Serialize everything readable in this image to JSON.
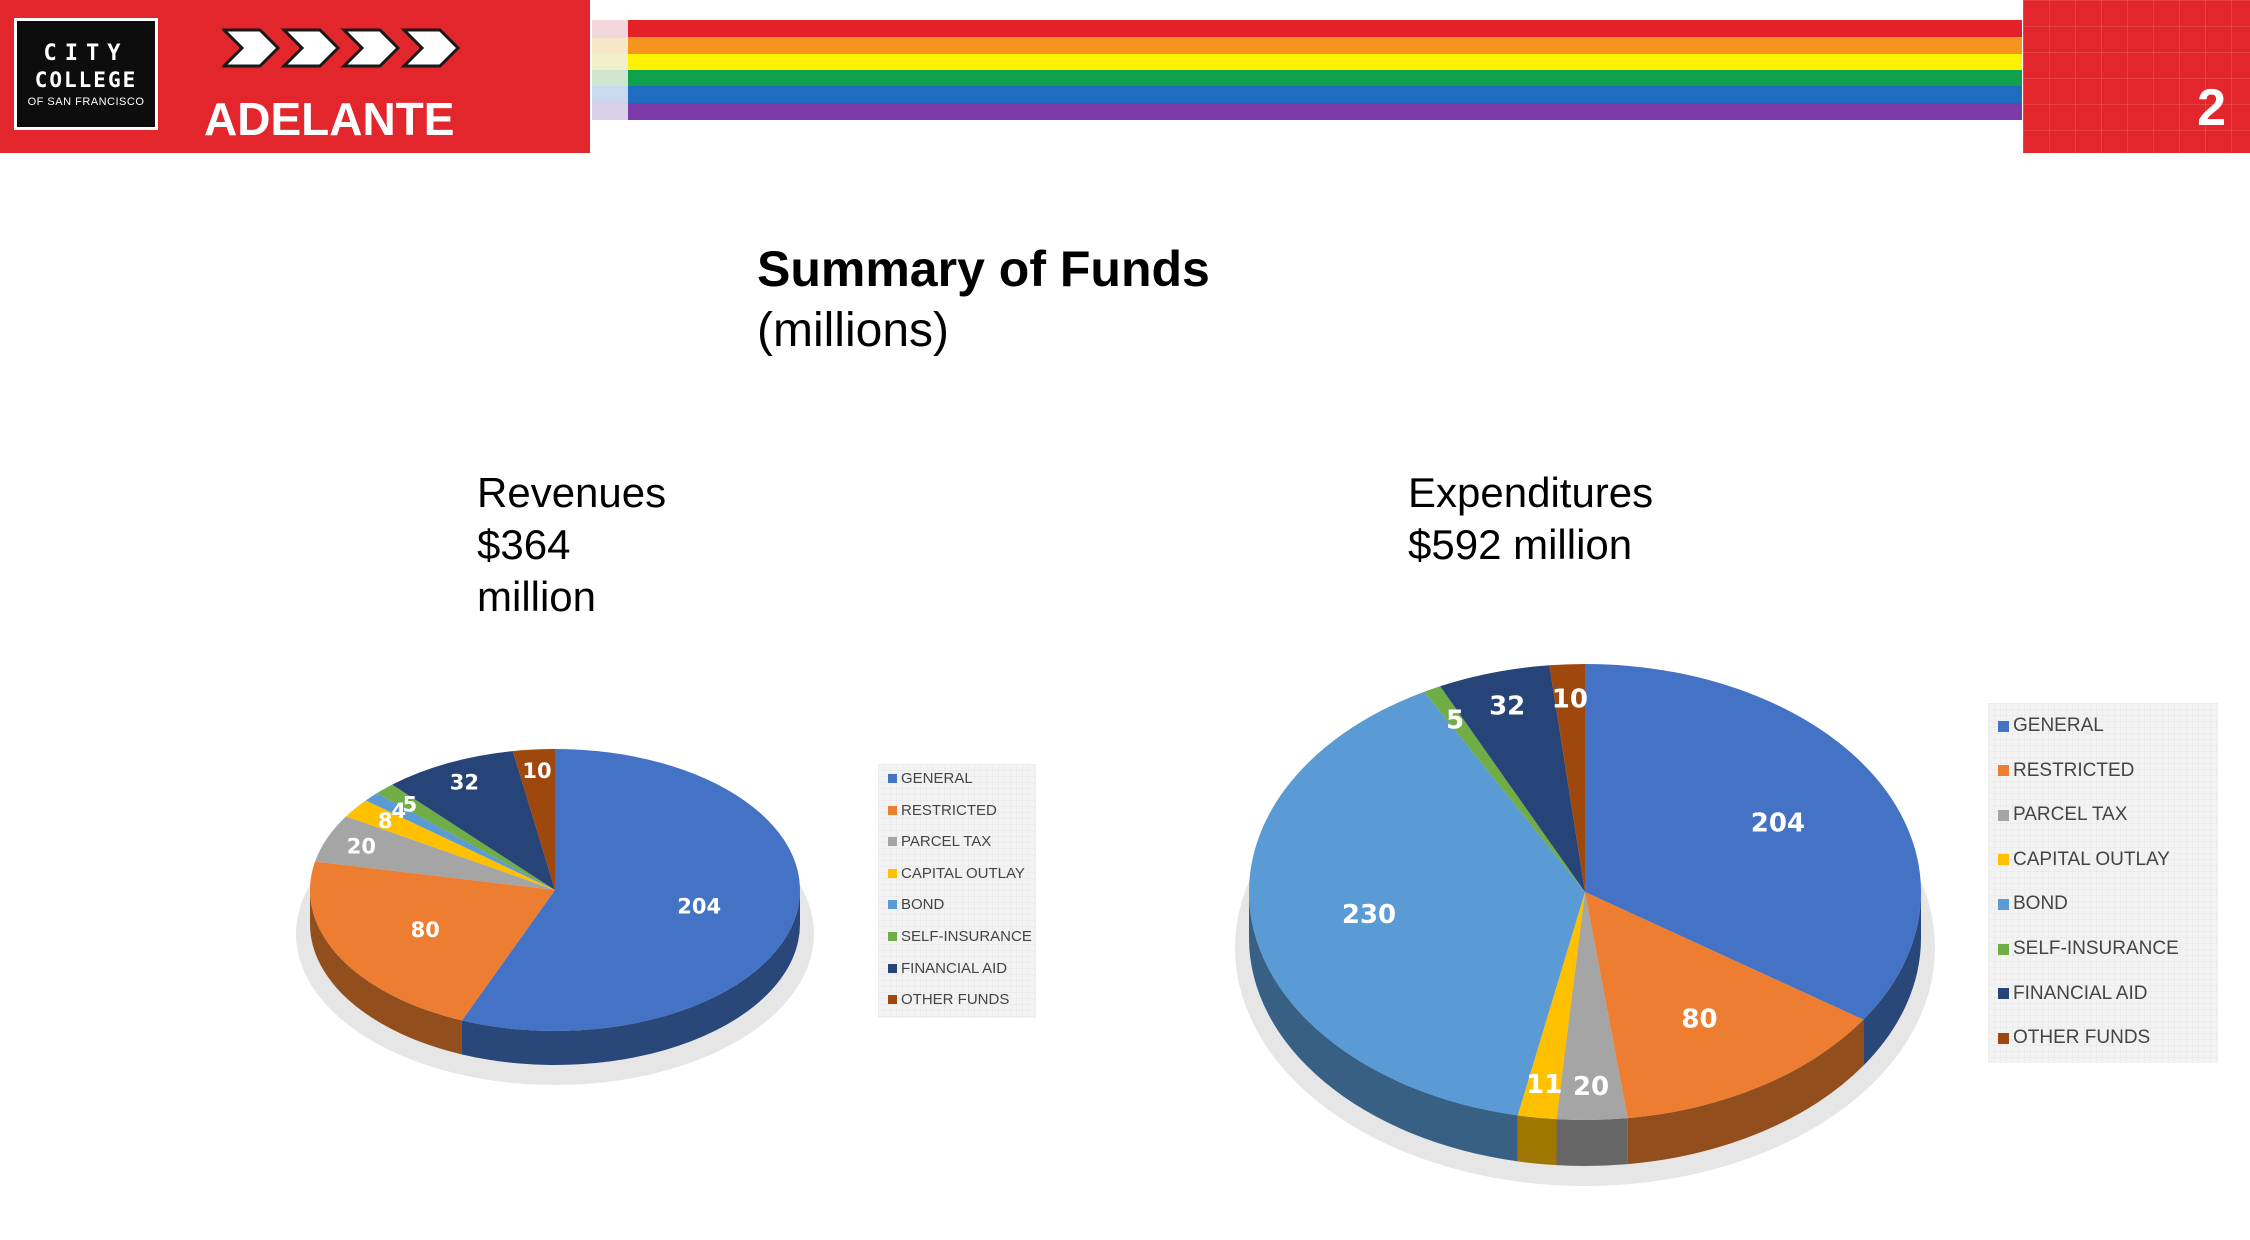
{
  "header": {
    "logo_line1": "CITY",
    "logo_line2": "COLLEGE",
    "logo_line3": "OF SAN FRANCISCO",
    "brand": "ADELANTE",
    "page_number": "2",
    "accent_color": "#e3262b"
  },
  "title": "Summary of Funds",
  "subtitle": "(millions)",
  "revenues_heading": "Revenues\n$364\nmillion",
  "expenditures_heading": "Expenditures\n$592 million",
  "chart_data": [
    {
      "type": "pie",
      "title": "Revenues $364 million",
      "categories": [
        "GENERAL",
        "RESTRICTED",
        "PARCEL TAX",
        "CAPITAL OUTLAY",
        "BOND",
        "SELF-INSURANCE",
        "FINANCIAL AID",
        "OTHER FUNDS"
      ],
      "values": [
        204,
        80,
        20,
        8,
        4,
        5,
        32,
        10
      ],
      "colors": [
        "#4472c4",
        "#ed7d31",
        "#a5a5a5",
        "#ffc000",
        "#5b9bd5",
        "#70ad47",
        "#264478",
        "#9e480e"
      ],
      "legend": "right"
    },
    {
      "type": "pie",
      "title": "Expenditures $592 million",
      "categories": [
        "GENERAL",
        "RESTRICTED",
        "PARCEL TAX",
        "CAPITAL OUTLAY",
        "BOND",
        "SELF-INSURANCE",
        "FINANCIAL AID",
        "OTHER FUNDS"
      ],
      "values": [
        204,
        80,
        20,
        11,
        230,
        5,
        32,
        10
      ],
      "colors": [
        "#4472c4",
        "#ed7d31",
        "#a5a5a5",
        "#ffc000",
        "#5b9bd5",
        "#70ad47",
        "#264478",
        "#9e480e"
      ],
      "legend": "right"
    }
  ]
}
